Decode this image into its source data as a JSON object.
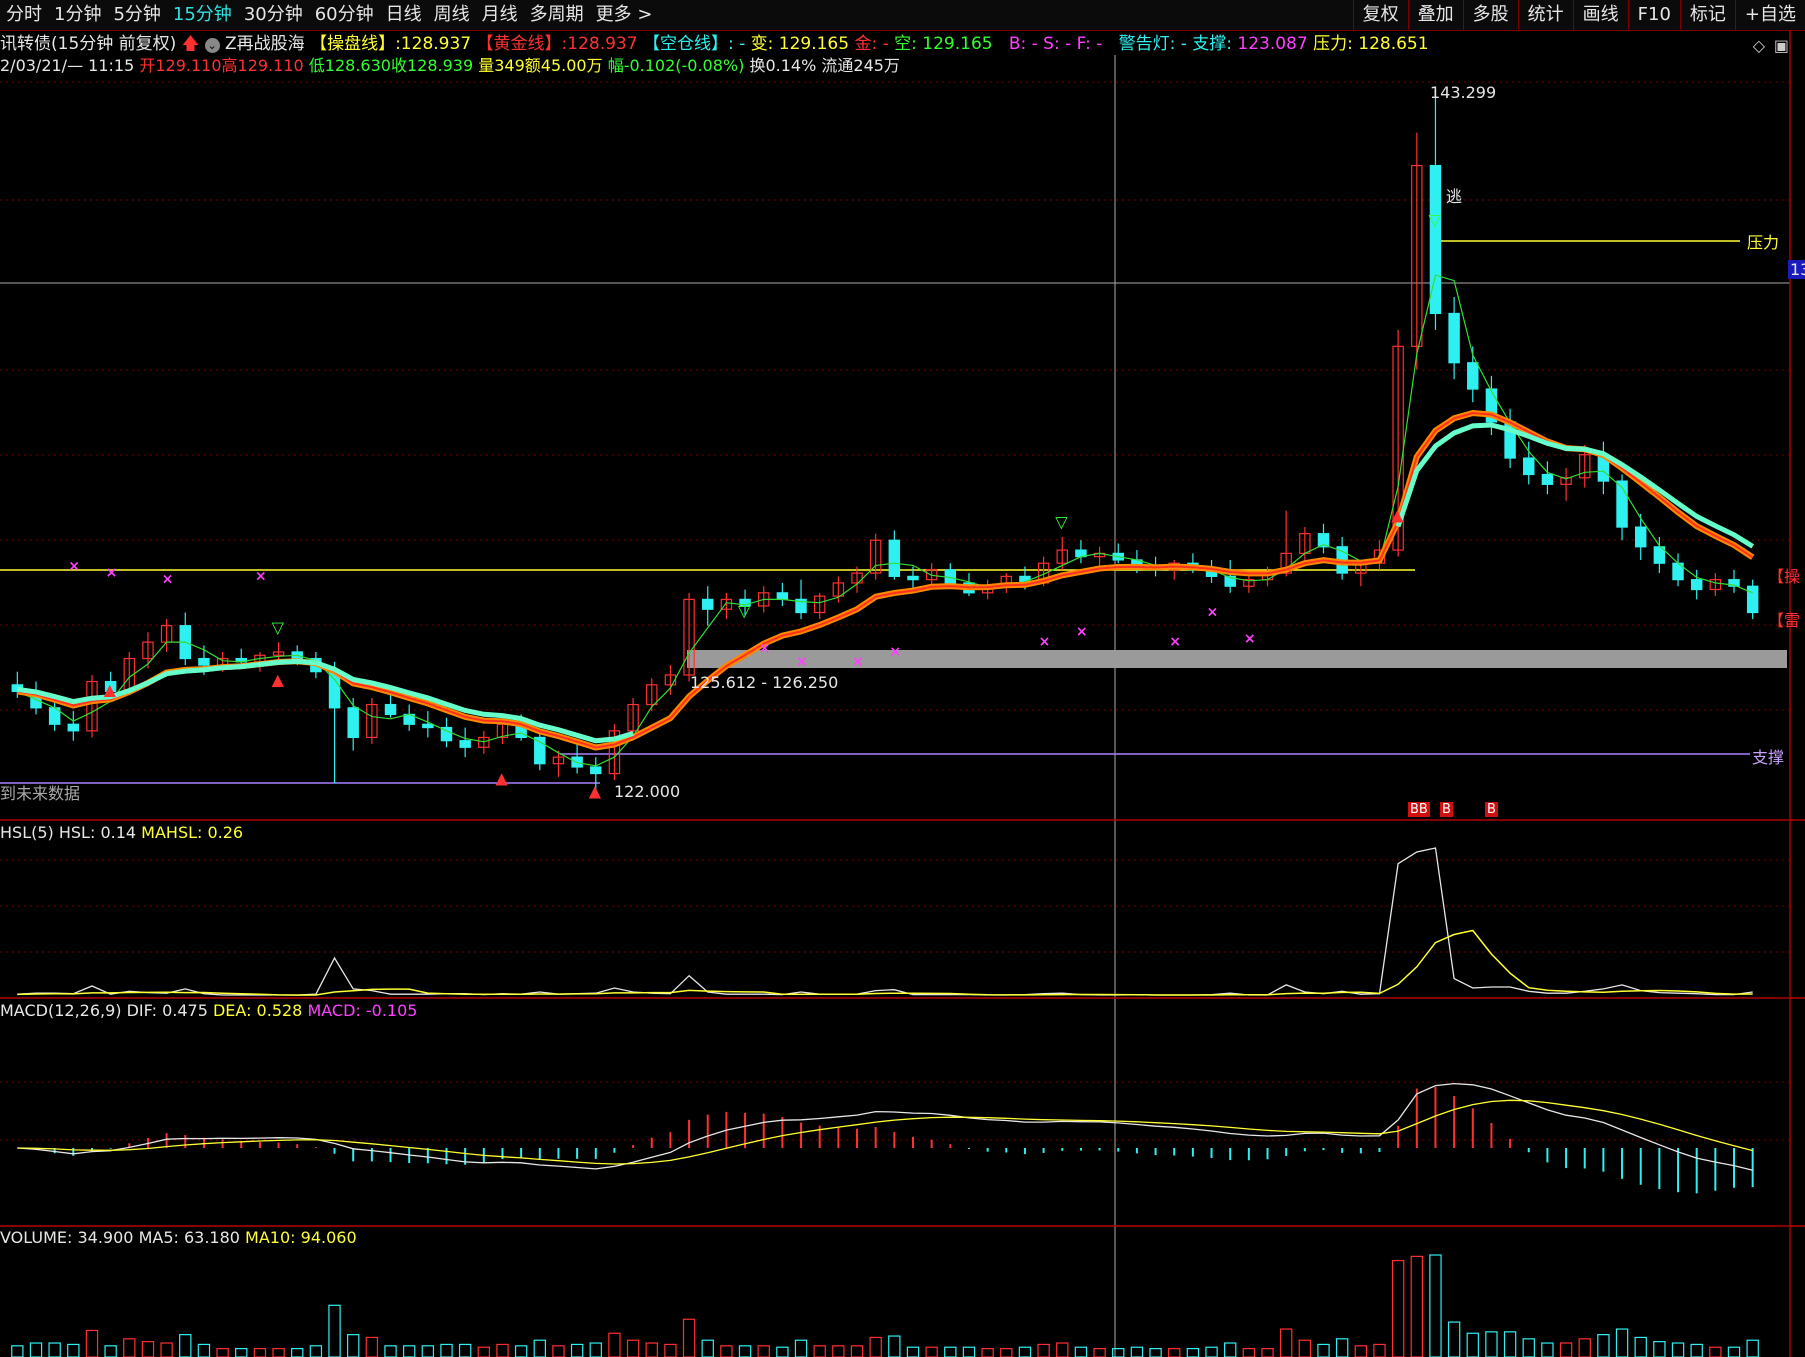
{
  "toolbar": {
    "periods": [
      "分时",
      "1分钟",
      "5分钟",
      "15分钟",
      "30分钟",
      "60分钟",
      "日线",
      "周线",
      "月线",
      "多周期",
      "更多 >"
    ],
    "active_index": 3,
    "right_buttons": [
      "复权",
      "叠加",
      "多股",
      "统计",
      "画线",
      "F10",
      "标记",
      "+自选"
    ]
  },
  "header": {
    "security": "讯转债(15分钟 前复权)",
    "indicator_name": "Z再战股海",
    "caopan_label": "【操盘线】",
    "caopan_value": ":128.937",
    "huangjin_label": "【黄金线】",
    "huangjin_value": ":128.937",
    "kongcang_label": "【空仓线】",
    "kongcang_value": ": -",
    "bian_label": "变: ",
    "bian_value": "129.165",
    "jin_label": "金: -",
    "kong_label": "空: ",
    "kong_value": "129.165",
    "bsf": "B: -  S: -  F: -",
    "warn_label": "警告灯: -",
    "support_label": "支撑: ",
    "support_value": "123.087",
    "pressure_label": "压力: ",
    "pressure_value": "128.651"
  },
  "bar_info": {
    "datetime": "2/03/21/— 11:15",
    "open": "开129.110",
    "high": "高129.110",
    "low": "低128.630",
    "close": "收128.939",
    "volume": "量349",
    "amount": "额45.00万",
    "change": "幅-0.102(-0.08%)",
    "turnover": "换0.14%",
    "float": "流通245万"
  },
  "annotations": {
    "high_price": "143.299",
    "low_price": "122.000",
    "escape": "逃",
    "pressure_tag": "压力",
    "support_tag": "支撑",
    "zone": "125.612 - 126.250",
    "future_data": "到未来数据",
    "axis_right": "13",
    "right_tag_1": "【操",
    "right_tag_2": "【雷",
    "b_markers": [
      "BB",
      "B",
      "B"
    ]
  },
  "panels": {
    "hsl": {
      "name": "HSL(5)",
      "hsl": "HSL: 0.14",
      "mahsl": "MAHSL: 0.26"
    },
    "macd": {
      "name": "MACD(12,26,9)",
      "dif": "DIF: 0.475",
      "dea": "DEA: 0.528",
      "macd": "MACD: -0.105"
    },
    "volume": {
      "name": "VOLUME: 34.900",
      "ma5": "MA5: 63.180",
      "ma10": "MA10: 94.060"
    }
  },
  "colors": {
    "up": "#ff3030",
    "down": "#2ff0f0",
    "yellow": "#ffff33",
    "magenta": "#ff40ff",
    "grid": "#7a0000"
  },
  "chart_data": {
    "type": "candlestick",
    "period": "15分钟",
    "price_range": [
      122.0,
      143.299
    ],
    "candles": [
      [
        125.2,
        125.6,
        124.8,
        125.0
      ],
      [
        125.0,
        125.3,
        124.3,
        124.5
      ],
      [
        124.5,
        124.8,
        123.8,
        124.0
      ],
      [
        124.0,
        124.4,
        123.5,
        123.8
      ],
      [
        123.8,
        125.5,
        123.6,
        125.3
      ],
      [
        125.3,
        125.6,
        124.8,
        125.0
      ],
      [
        125.0,
        126.2,
        124.9,
        126.0
      ],
      [
        126.0,
        126.8,
        125.7,
        126.5
      ],
      [
        126.5,
        127.2,
        126.2,
        127.0
      ],
      [
        127.0,
        127.4,
        125.8,
        126.0
      ],
      [
        126.0,
        126.4,
        125.5,
        125.8
      ],
      [
        125.8,
        126.2,
        125.6,
        126.0
      ],
      [
        126.0,
        126.3,
        125.7,
        125.9
      ],
      [
        125.9,
        126.2,
        125.6,
        126.1
      ],
      [
        126.1,
        126.5,
        125.9,
        126.2
      ],
      [
        126.2,
        126.4,
        125.8,
        126.0
      ],
      [
        126.0,
        126.2,
        125.4,
        125.6
      ],
      [
        125.6,
        125.9,
        122.2,
        124.5
      ],
      [
        124.5,
        124.8,
        123.2,
        123.6
      ],
      [
        123.6,
        124.8,
        123.4,
        124.6
      ],
      [
        124.6,
        125.0,
        124.2,
        124.3
      ],
      [
        124.3,
        124.6,
        123.8,
        124.0
      ],
      [
        124.0,
        124.4,
        123.6,
        123.9
      ],
      [
        123.9,
        124.2,
        123.3,
        123.5
      ],
      [
        123.5,
        123.9,
        123.0,
        123.3
      ],
      [
        123.3,
        123.8,
        123.1,
        123.6
      ],
      [
        123.6,
        124.3,
        123.4,
        124.0
      ],
      [
        124.0,
        124.3,
        123.5,
        123.6
      ],
      [
        123.6,
        123.8,
        122.6,
        122.8
      ],
      [
        122.8,
        123.2,
        122.4,
        123.0
      ],
      [
        123.0,
        123.4,
        122.5,
        122.7
      ],
      [
        122.7,
        123.0,
        122.0,
        122.5
      ],
      [
        122.5,
        124.0,
        122.3,
        123.8
      ],
      [
        123.8,
        124.8,
        123.6,
        124.6
      ],
      [
        124.6,
        125.4,
        124.4,
        125.2
      ],
      [
        125.2,
        125.8,
        124.9,
        125.5
      ],
      [
        125.5,
        128.0,
        125.3,
        127.8
      ],
      [
        127.8,
        128.2,
        127.0,
        127.5
      ],
      [
        127.5,
        128.0,
        127.2,
        127.8
      ],
      [
        127.8,
        128.1,
        127.3,
        127.6
      ],
      [
        127.6,
        128.2,
        127.4,
        128.0
      ],
      [
        128.0,
        128.3,
        127.6,
        127.8
      ],
      [
        127.8,
        128.4,
        127.2,
        127.4
      ],
      [
        127.4,
        128.0,
        127.2,
        127.9
      ],
      [
        127.9,
        128.5,
        127.7,
        128.3
      ],
      [
        128.3,
        128.8,
        128.0,
        128.6
      ],
      [
        128.6,
        129.8,
        128.4,
        129.6
      ],
      [
        129.6,
        129.9,
        128.4,
        128.5
      ],
      [
        128.5,
        128.8,
        128.1,
        128.4
      ],
      [
        128.4,
        128.9,
        128.2,
        128.7
      ],
      [
        128.7,
        128.9,
        128.2,
        128.3
      ],
      [
        128.3,
        128.6,
        127.9,
        128.0
      ],
      [
        128.0,
        128.4,
        127.8,
        128.2
      ],
      [
        128.2,
        128.6,
        128.0,
        128.5
      ],
      [
        128.5,
        128.8,
        128.1,
        128.3
      ],
      [
        128.3,
        129.1,
        128.2,
        128.9
      ],
      [
        128.9,
        129.7,
        128.7,
        129.3
      ],
      [
        129.3,
        129.6,
        128.9,
        129.1
      ],
      [
        129.1,
        129.4,
        128.8,
        129.2
      ],
      [
        129.2,
        129.5,
        128.9,
        129.0
      ],
      [
        129.0,
        129.3,
        128.6,
        128.8
      ],
      [
        128.8,
        129.1,
        128.5,
        128.7
      ],
      [
        128.7,
        129.0,
        128.4,
        128.9
      ],
      [
        128.9,
        129.2,
        128.6,
        128.7
      ],
      [
        128.7,
        129.0,
        128.3,
        128.5
      ],
      [
        128.5,
        129.0,
        128.0,
        128.2
      ],
      [
        128.2,
        128.6,
        128.0,
        128.4
      ],
      [
        128.4,
        128.8,
        128.2,
        128.6
      ],
      [
        128.6,
        130.5,
        128.5,
        129.2
      ],
      [
        129.2,
        130.0,
        128.8,
        129.8
      ],
      [
        129.8,
        130.1,
        129.2,
        129.4
      ],
      [
        129.4,
        129.7,
        128.4,
        128.6
      ],
      [
        128.6,
        129.0,
        128.2,
        128.9
      ],
      [
        128.9,
        129.6,
        128.7,
        129.3
      ],
      [
        129.3,
        136.0,
        129.1,
        135.5
      ],
      [
        135.5,
        142.0,
        134.8,
        141.0
      ],
      [
        141.0,
        143.299,
        136.0,
        136.5
      ],
      [
        136.5,
        137.0,
        134.5,
        135.0
      ],
      [
        135.0,
        135.5,
        133.8,
        134.2
      ],
      [
        134.2,
        134.6,
        132.8,
        133.2
      ],
      [
        133.2,
        133.6,
        131.8,
        132.1
      ],
      [
        132.1,
        132.6,
        131.3,
        131.6
      ],
      [
        131.6,
        132.0,
        131.0,
        131.3
      ],
      [
        131.3,
        131.8,
        130.8,
        131.5
      ],
      [
        131.5,
        132.5,
        131.2,
        132.2
      ],
      [
        132.2,
        132.6,
        131.0,
        131.4
      ],
      [
        131.4,
        131.6,
        129.6,
        130.0
      ],
      [
        130.0,
        130.4,
        129.0,
        129.4
      ],
      [
        129.4,
        129.7,
        128.6,
        128.9
      ],
      [
        128.9,
        129.2,
        128.2,
        128.4
      ],
      [
        128.4,
        128.7,
        127.8,
        128.1
      ],
      [
        128.1,
        128.6,
        127.9,
        128.4
      ],
      [
        128.4,
        128.7,
        128.0,
        128.2
      ],
      [
        128.2,
        128.4,
        127.2,
        127.4
      ]
    ]
  }
}
